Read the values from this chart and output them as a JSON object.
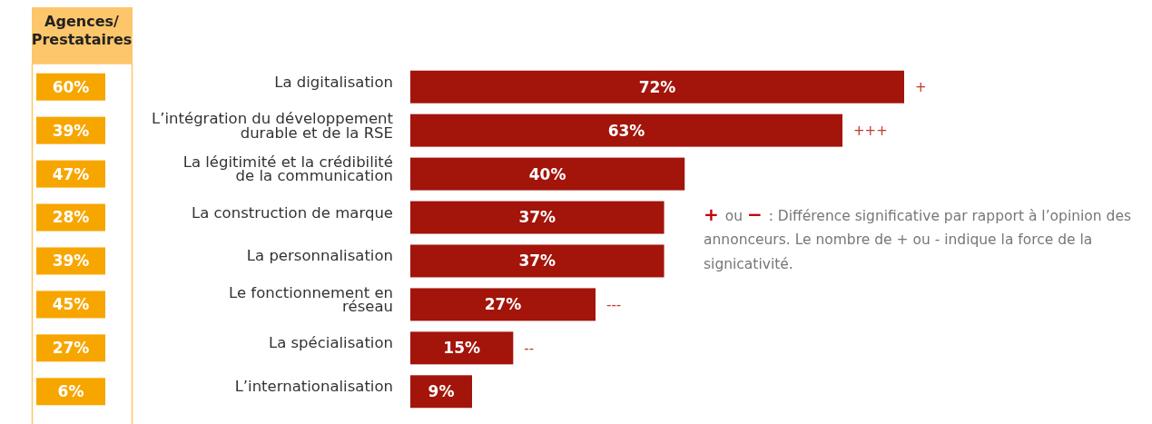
{
  "chart_data": [
    {
      "type": "other",
      "title": "Agences/\nPrestataires",
      "color": "#f7a600",
      "annotations": [
        "60%",
        "39%",
        "47%",
        "28%",
        "39%",
        "45%",
        "27%",
        "6%"
      ]
    },
    {
      "type": "bar",
      "orientation": "horizontal",
      "categories": [
        "La digitalisation",
        "L’intégration du développement\ndurable et de la RSE",
        "La légitimité et la crédibilité\nde la communication",
        "La construction de marque",
        "La personnalisation",
        "Le fonctionnement en\nréseau",
        "La spécialisation",
        "L’internationalisation"
      ],
      "series": [
        {
          "color": "#a3140a",
          "values": [
            72,
            63,
            40,
            37,
            37,
            27,
            15,
            9
          ],
          "value_labels": [
            "72%",
            "63%",
            "40%",
            "37%",
            "37%",
            "27%",
            "15%",
            "9%"
          ]
        }
      ],
      "annotations": [
        {
          "text": "+",
          "x": 72,
          "y": "La digitalisation"
        },
        {
          "text": "+++",
          "x": 63,
          "y": "L’intégration du développement\ndurable et de la RSE"
        },
        {
          "text": "---",
          "x": 27,
          "y": "Le fonctionnement en\nréseau"
        },
        {
          "text": "--",
          "x": 15,
          "y": "La spécialisation"
        },
        "+ ou − : Différence significative par rapport à l’opinion des annonceurs. Le nombre de + ou - indique la force de la signicativité."
      ]
    }
  ]
}
